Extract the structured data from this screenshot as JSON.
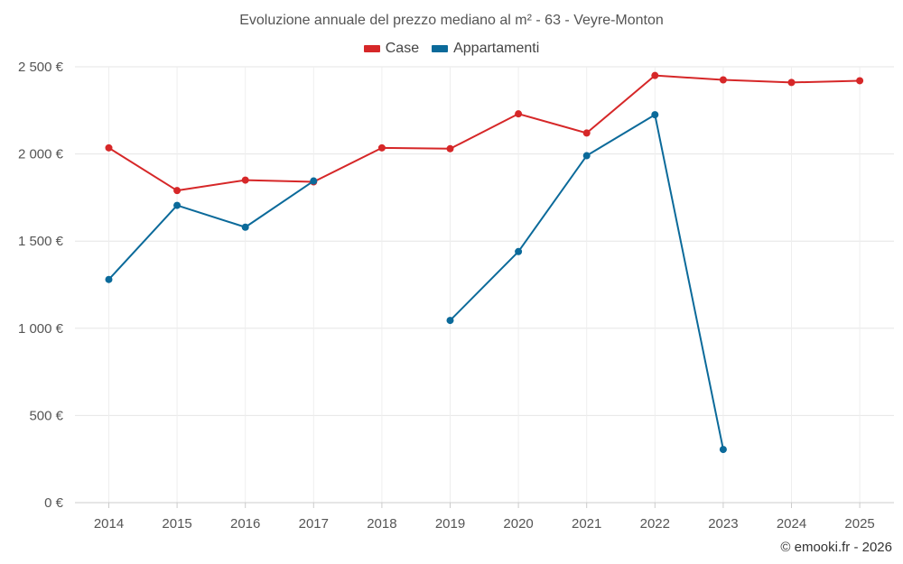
{
  "chart_data": {
    "type": "line",
    "title": "Evoluzione annuale del prezzo mediano al m² - 63 - Veyre-Monton",
    "categories": [
      "2014",
      "2015",
      "2016",
      "2017",
      "2018",
      "2019",
      "2020",
      "2021",
      "2022",
      "2023",
      "2024",
      "2025"
    ],
    "y_ticks": [
      0,
      500,
      1000,
      1500,
      2000,
      2500
    ],
    "y_tick_labels": [
      "0 €",
      "500 €",
      "1 000 €",
      "1 500 €",
      "2 000 €",
      "2 500 €"
    ],
    "ylim": [
      0,
      2500
    ],
    "grid": true,
    "legend_position": "top-center",
    "series": [
      {
        "name": "Case",
        "color": "#d62728",
        "values": [
          2035,
          1790,
          1850,
          1840,
          2035,
          2030,
          2230,
          2120,
          2450,
          2425,
          2410,
          2420
        ]
      },
      {
        "name": "Appartamenti",
        "color": "#0b6a9a",
        "values": [
          1280,
          1705,
          1580,
          1845,
          null,
          1045,
          1440,
          1990,
          2225,
          305,
          null,
          null
        ]
      }
    ]
  },
  "credit": "© emooki.fr - 2026"
}
